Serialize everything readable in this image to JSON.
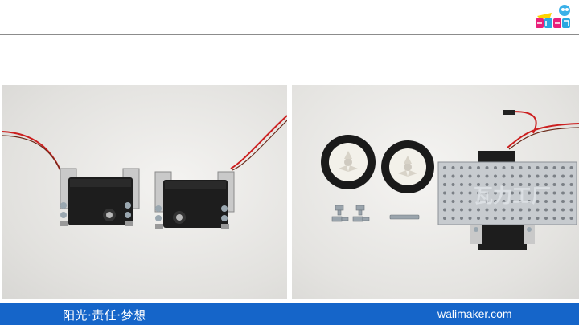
{
  "footer": {
    "slogan": "阳光·责任·梦想",
    "url": "walimaker.com"
  },
  "photos": {
    "left": "two-servos-with-brackets",
    "right": "car-chassis-parts"
  },
  "colors": {
    "footer_bar": "#1565c9",
    "rule": "#8c8c8c",
    "wire_red": "#cc1f1f"
  }
}
